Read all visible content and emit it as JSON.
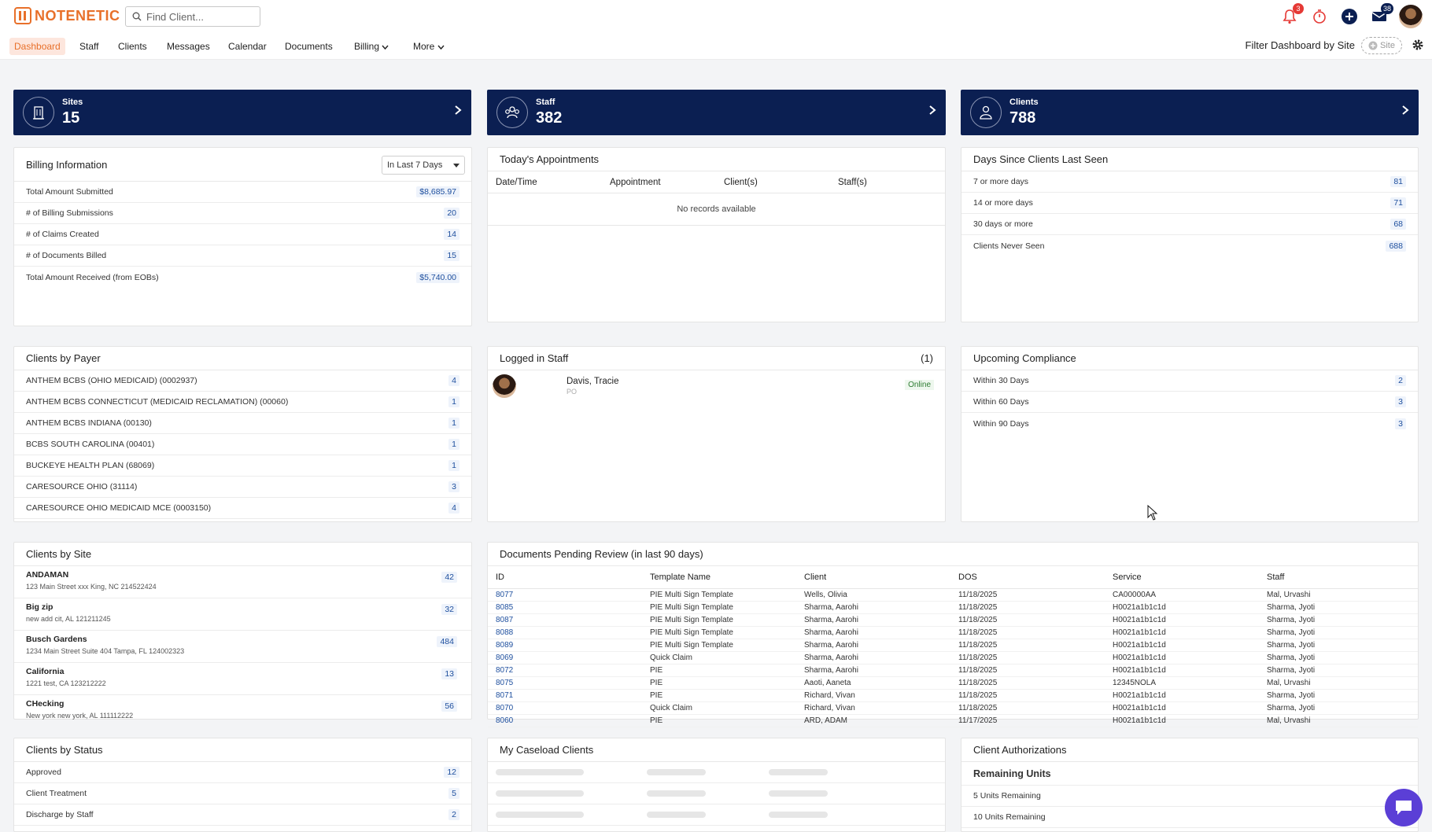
{
  "header": {
    "logo_text": "NOTENETIC",
    "search_placeholder": "Find Client...",
    "notifications_count": "3",
    "messages_count": "38",
    "icons": [
      "bell-icon",
      "timer-icon",
      "plus-icon",
      "mail-icon",
      "avatar"
    ]
  },
  "nav": {
    "items": [
      {
        "label": "Dashboard",
        "active": true
      },
      {
        "label": "Staff"
      },
      {
        "label": "Clients"
      },
      {
        "label": "Messages"
      },
      {
        "label": "Calendar"
      },
      {
        "label": "Documents"
      },
      {
        "label": "Billing"
      },
      {
        "label": "More"
      }
    ],
    "filter_label": "Filter Dashboard by Site",
    "site_pill": "Site"
  },
  "summary": {
    "sites": {
      "label": "Sites",
      "value": "15"
    },
    "staff": {
      "label": "Staff",
      "value": "382"
    },
    "clients": {
      "label": "Clients",
      "value": "788"
    }
  },
  "billing": {
    "title": "Billing Information",
    "range": "In Last 7 Days",
    "rows": [
      {
        "label": "Total Amount Submitted",
        "value": "$8,685.97"
      },
      {
        "label": "# of Billing Submissions",
        "value": "20"
      },
      {
        "label": "# of Claims Created",
        "value": "14"
      },
      {
        "label": "# of Documents Billed",
        "value": "15"
      },
      {
        "label": "Total Amount Received (from EOBs)",
        "value": "$5,740.00"
      }
    ]
  },
  "appointments": {
    "title": "Today's Appointments",
    "columns": [
      "Date/Time",
      "Appointment",
      "Client(s)",
      "Staff(s)"
    ],
    "empty": "No records available"
  },
  "last_seen": {
    "title": "Days Since Clients Last Seen",
    "rows": [
      {
        "label": "7 or more days",
        "value": "81"
      },
      {
        "label": "14 or more days",
        "value": "71"
      },
      {
        "label": "30 days or more",
        "value": "68"
      },
      {
        "label": "Clients Never Seen",
        "value": "688"
      }
    ]
  },
  "payer": {
    "title": "Clients by Payer",
    "rows": [
      {
        "label": "ANTHEM BCBS (OHIO MEDICAID) (0002937)",
        "value": "4"
      },
      {
        "label": "ANTHEM BCBS CONNECTICUT (MEDICAID RECLAMATION) (00060)",
        "value": "1"
      },
      {
        "label": "ANTHEM BCBS INDIANA (00130)",
        "value": "1"
      },
      {
        "label": "BCBS SOUTH CAROLINA (00401)",
        "value": "1"
      },
      {
        "label": "BUCKEYE HEALTH PLAN (68069)",
        "value": "1"
      },
      {
        "label": "CARESOURCE OHIO (31114)",
        "value": "3"
      },
      {
        "label": "CARESOURCE OHIO MEDICAID MCE (0003150)",
        "value": "4"
      }
    ]
  },
  "logged_staff": {
    "title": "Logged in Staff",
    "count": "(1)",
    "name": "Davis, Tracie",
    "role": "PO",
    "status": "Online"
  },
  "compliance": {
    "title": "Upcoming Compliance",
    "rows": [
      {
        "label": "Within 30 Days",
        "value": "2"
      },
      {
        "label": "Within 60 Days",
        "value": "3"
      },
      {
        "label": "Within 90 Days",
        "value": "3"
      }
    ]
  },
  "sites": {
    "title": "Clients by Site",
    "rows": [
      {
        "name": "ANDAMAN",
        "address": "123 Main Street xxx King, NC 214522424",
        "value": "42"
      },
      {
        "name": "Big zip",
        "address": "new add cit, AL 121211245",
        "value": "32"
      },
      {
        "name": "Busch Gardens",
        "address": "1234 Main Street Suite 404 Tampa, FL 124002323",
        "value": "484"
      },
      {
        "name": "California",
        "address": "1221 test, CA 123212222",
        "value": "13"
      },
      {
        "name": "CHecking",
        "address": "New york new york, AL 111112222",
        "value": "56"
      }
    ]
  },
  "docs": {
    "title": "Documents Pending Review (in last 90 days)",
    "columns": [
      "ID",
      "Template Name",
      "Client",
      "DOS",
      "Service",
      "Staff"
    ],
    "rows": [
      [
        "8077",
        "PIE Multi Sign Template",
        "Wells, Olivia",
        "11/18/2025",
        "CA00000AA",
        "Mal, Urvashi"
      ],
      [
        "8085",
        "PIE Multi Sign Template",
        "Sharma, Aarohi",
        "11/18/2025",
        "H0021a1b1c1d",
        "Sharma, Jyoti"
      ],
      [
        "8087",
        "PIE Multi Sign Template",
        "Sharma, Aarohi",
        "11/18/2025",
        "H0021a1b1c1d",
        "Sharma, Jyoti"
      ],
      [
        "8088",
        "PIE Multi Sign Template",
        "Sharma, Aarohi",
        "11/18/2025",
        "H0021a1b1c1d",
        "Sharma, Jyoti"
      ],
      [
        "8089",
        "PIE Multi Sign Template",
        "Sharma, Aarohi",
        "11/18/2025",
        "H0021a1b1c1d",
        "Sharma, Jyoti"
      ],
      [
        "8069",
        "Quick Claim",
        "Sharma, Aarohi",
        "11/18/2025",
        "H0021a1b1c1d",
        "Sharma, Jyoti"
      ],
      [
        "8072",
        "PIE",
        "Sharma, Aarohi",
        "11/18/2025",
        "H0021a1b1c1d",
        "Sharma, Jyoti"
      ],
      [
        "8075",
        "PIE",
        "Aaoti, Aaneta",
        "11/18/2025",
        "12345NOLA",
        "Mal, Urvashi"
      ],
      [
        "8071",
        "PIE",
        "Richard, Vivan",
        "11/18/2025",
        "H0021a1b1c1d",
        "Sharma, Jyoti"
      ],
      [
        "8070",
        "Quick Claim",
        "Richard, Vivan",
        "11/18/2025",
        "H0021a1b1c1d",
        "Sharma, Jyoti"
      ],
      [
        "8060",
        "PIE",
        "ARD, ADAM",
        "11/17/2025",
        "H0021a1b1c1d",
        "Mal, Urvashi"
      ]
    ]
  },
  "status": {
    "title": "Clients by Status",
    "rows": [
      {
        "label": "Approved",
        "value": "12"
      },
      {
        "label": "Client Treatment",
        "value": "5"
      },
      {
        "label": "Discharge by Staff",
        "value": "2"
      }
    ]
  },
  "caseload": {
    "title": "My Caseload Clients"
  },
  "auth": {
    "title": "Client Authorizations",
    "subtitle": "Remaining Units",
    "rows": [
      "5 Units Remaining",
      "10 Units Remaining"
    ]
  },
  "colors": {
    "brand": "#e8702a",
    "navy": "#0b1f52",
    "link": "#1e4f9e",
    "online": "#2e7d32",
    "chat": "#5b3fd6"
  }
}
